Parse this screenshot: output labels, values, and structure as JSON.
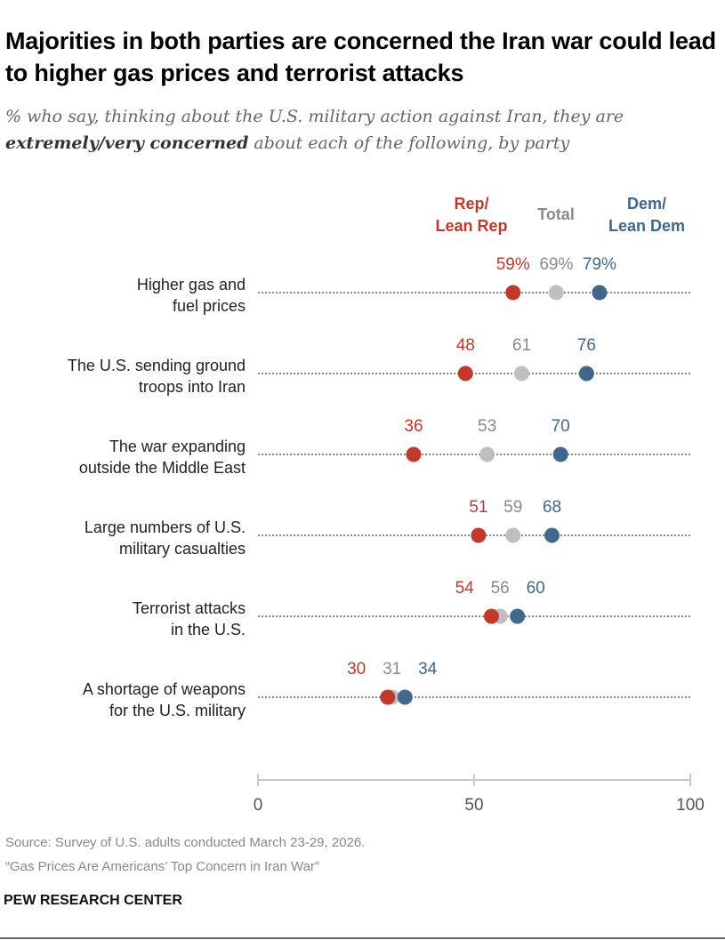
{
  "title": "Majorities in both parties are concerned the Iran war could lead to higher gas prices and terrorist attacks",
  "subtitle_pre": "% who say, thinking about the U.S. military action against Iran, they are",
  "subtitle_bold": "extremely/very concerned",
  "subtitle_post": " about each of the following, by party",
  "colors": {
    "rep": "#c0392b",
    "total": "#bfbfbf",
    "dem": "#41678a",
    "total_text": "#8a8a8a"
  },
  "chart_data": {
    "type": "dot",
    "xlim": [
      0,
      100
    ],
    "xticks": [
      "0",
      "50",
      "100"
    ],
    "grid": false,
    "legend_placement": "top",
    "series_labels": {
      "rep": "Rep/\nLean Rep",
      "total": "Total",
      "dem": "Dem/\nLean Dem"
    },
    "legend": {
      "rep_line1": "Rep/",
      "rep_line2": "Lean Rep",
      "total": "Total",
      "dem_line1": "Dem/",
      "dem_line2": "Lean Dem"
    },
    "categories": [
      {
        "line1": "Higher gas and",
        "line2": "fuel prices",
        "rep": 59,
        "total": 69,
        "dem": 79,
        "rep_label": "59%",
        "total_label": "69%",
        "dem_label": "79%"
      },
      {
        "line1": "The U.S. sending ground",
        "line2": "troops into Iran",
        "rep": 48,
        "total": 61,
        "dem": 76,
        "rep_label": "48",
        "total_label": "61",
        "dem_label": "76"
      },
      {
        "line1": "The war expanding",
        "line2": "outside the Middle East",
        "rep": 36,
        "total": 53,
        "dem": 70,
        "rep_label": "36",
        "total_label": "53",
        "dem_label": "70"
      },
      {
        "line1": "Large numbers of U.S.",
        "line2": "military casualties",
        "rep": 51,
        "total": 59,
        "dem": 68,
        "rep_label": "51",
        "total_label": "59",
        "dem_label": "68"
      },
      {
        "line1": "Terrorist attacks",
        "line2": "in the U.S.",
        "rep": 54,
        "total": 56,
        "dem": 60,
        "rep_label": "54",
        "total_label": "56",
        "dem_label": "60"
      },
      {
        "line1": "A shortage of weapons",
        "line2": "for the U.S. military",
        "rep": 30,
        "total": 31,
        "dem": 34,
        "rep_label": "30",
        "total_label": "31",
        "dem_label": "34"
      }
    ]
  },
  "source": "Source: Survey of U.S. adults conducted March 23-29, 2026.",
  "report": "“Gas Prices Are Americans’ Top Concern in Iran War”",
  "brand": "PEW RESEARCH CENTER"
}
